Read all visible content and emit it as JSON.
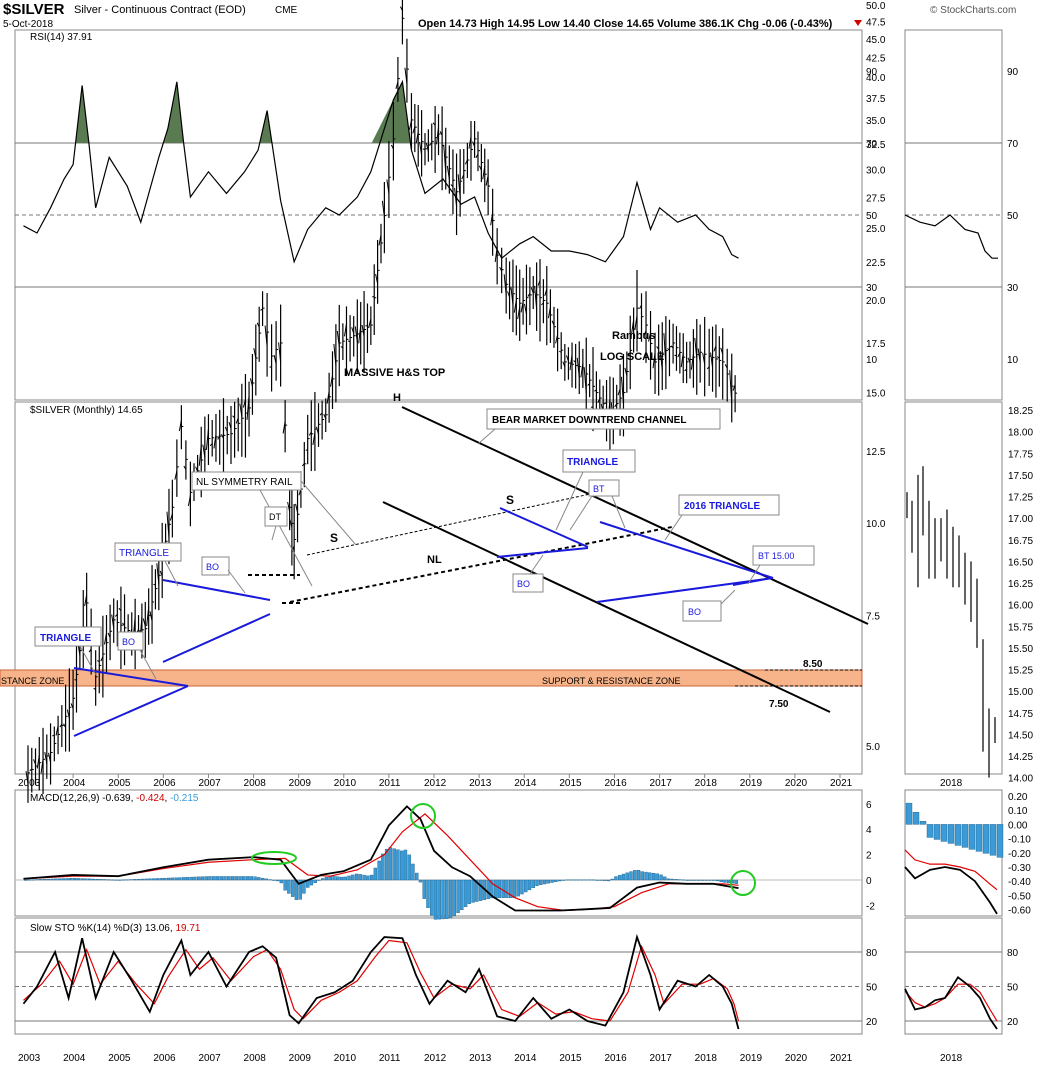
{
  "header": {
    "symbol": "$SILVER",
    "description": "Silver - Continuous Contract (EOD)",
    "exchange": "CME",
    "date": "5-Oct-2018",
    "quote": "Open 14.73   High 14.95   Low 14.40   Close 14.65   Volume 386.1K   Chg -0.06 (-0.43%)",
    "logo": "© StockCharts.com"
  },
  "colors": {
    "price_bar": "#000000",
    "trendline_blue": "#1a1adb",
    "macd_histogram": "#3b9bd6",
    "signal_line": "#e00000",
    "rsi_overbought_fill": "#5a7a52",
    "support_zone": "#f7b48a",
    "highlight_circle": "#22cc22",
    "grid": "#999999"
  },
  "rsi_panel": {
    "title": "RSI(14) 37.91",
    "y_ticks": [
      "90",
      "70",
      "50",
      "30",
      "10"
    ],
    "right_y_ticks": [
      "90",
      "70",
      "50",
      "30",
      "10"
    ]
  },
  "price_panel": {
    "title": "$SILVER (Monthly) 14.65",
    "y_ticks": [
      "50.0",
      "47.5",
      "45.0",
      "42.5",
      "40.0",
      "37.5",
      "35.0",
      "32.5",
      "30.0",
      "27.5",
      "25.0",
      "22.5",
      "20.0",
      "17.5",
      "15.0",
      "12.5",
      "10.0",
      "7.5",
      "5.0"
    ],
    "right_y_ticks": [
      "18.25",
      "18.00",
      "17.75",
      "17.50",
      "17.25",
      "17.00",
      "16.75",
      "16.50",
      "16.25",
      "16.00",
      "15.75",
      "15.50",
      "15.25",
      "15.00",
      "14.75",
      "14.50",
      "14.25",
      "14.00"
    ],
    "annotations": {
      "rambus": "Rambus",
      "log_scale": "LOG SCALE",
      "massive_hs": "MASSIVE H&S TOP",
      "head": "H",
      "left_shoulder": "S",
      "right_shoulder": "S",
      "neckline": "NL",
      "bear_channel": "BEAR MARKET DOWNTREND CHANNEL",
      "triangle_2013": "TRIANGLE",
      "bt_2015": "BT",
      "triangle_2016": "2016 TRIANGLE",
      "bt_1500": "BT 15.00",
      "nl_symmetry": "NL SYMMETRY RAIL",
      "dt": "DT",
      "triangle_2006": "TRIANGLE",
      "bo_2006": "BO",
      "triangle_2004": "TRIANGLE",
      "bo_2005": "BO",
      "bo_2014": "BO",
      "bo_2018": "BO",
      "support_zone": "SUPPORT & RESISTANCE ZONE",
      "resistance_zone_left": "STANCE ZONE",
      "level_850": "8.50",
      "level_750": "7.50"
    }
  },
  "macd_panel": {
    "title": "MACD(12,26,9) -0.639, -0.424, -0.215",
    "y_ticks": [
      "6",
      "4",
      "2",
      "0",
      "-2"
    ],
    "right_y_ticks": [
      "0.20",
      "0.10",
      "0.00",
      "-0.10",
      "-0.20",
      "-0.30",
      "-0.40",
      "-0.50",
      "-0.60"
    ]
  },
  "sto_panel": {
    "title": "Slow STO %K(14) %D(3) 13.06, 19.71",
    "y_ticks": [
      "80",
      "50",
      "20"
    ],
    "right_y_ticks": [
      "80",
      "50",
      "20"
    ]
  },
  "x_axis": {
    "years": [
      "2003",
      "2004",
      "2005",
      "2006",
      "2007",
      "2008",
      "2009",
      "2010",
      "2011",
      "2012",
      "2013",
      "2014",
      "2015",
      "2016",
      "2017",
      "2018",
      "2019",
      "2020",
      "2021"
    ],
    "right_year": "2018"
  },
  "chart_data": {
    "type": "line",
    "title": "$SILVER (Monthly) 14.65",
    "y_scale": "log",
    "ylim": [
      4.5,
      50.0
    ],
    "series": [
      {
        "name": "$SILVER (Monthly)",
        "points": [
          [
            2003.0,
            4.6
          ],
          [
            2003.5,
            4.9
          ],
          [
            2004.0,
            5.8
          ],
          [
            2004.3,
            7.8
          ],
          [
            2004.5,
            6.2
          ],
          [
            2004.9,
            7.4
          ],
          [
            2005.3,
            7.1
          ],
          [
            2005.6,
            7.2
          ],
          [
            2005.9,
            8.5
          ],
          [
            2006.2,
            10.5
          ],
          [
            2006.4,
            13.5
          ],
          [
            2006.6,
            11.0
          ],
          [
            2007.0,
            13.0
          ],
          [
            2007.5,
            13.2
          ],
          [
            2007.9,
            14.3
          ],
          [
            2008.2,
            19.5
          ],
          [
            2008.4,
            16.8
          ],
          [
            2008.6,
            17.5
          ],
          [
            2008.8,
            10.5
          ],
          [
            2008.9,
            9.5
          ],
          [
            2009.2,
            13.0
          ],
          [
            2009.6,
            14.0
          ],
          [
            2009.9,
            17.5
          ],
          [
            2010.3,
            18.0
          ],
          [
            2010.6,
            18.5
          ],
          [
            2010.9,
            26.0
          ],
          [
            2011.1,
            33.0
          ],
          [
            2011.3,
            48.0
          ],
          [
            2011.5,
            35.0
          ],
          [
            2011.8,
            32.0
          ],
          [
            2012.1,
            33.5
          ],
          [
            2012.5,
            28.0
          ],
          [
            2012.9,
            33.0
          ],
          [
            2013.2,
            28.5
          ],
          [
            2013.4,
            23.0
          ],
          [
            2013.6,
            21.0
          ],
          [
            2013.9,
            19.8
          ],
          [
            2014.2,
            20.5
          ],
          [
            2014.5,
            19.8
          ],
          [
            2014.9,
            16.5
          ],
          [
            2015.3,
            16.2
          ],
          [
            2015.6,
            15.0
          ],
          [
            2015.9,
            14.0
          ],
          [
            2016.2,
            15.0
          ],
          [
            2016.5,
            19.5
          ],
          [
            2016.7,
            18.5
          ],
          [
            2016.9,
            16.5
          ],
          [
            2017.3,
            17.5
          ],
          [
            2017.6,
            16.5
          ],
          [
            2017.9,
            17.0
          ],
          [
            2018.1,
            16.8
          ],
          [
            2018.4,
            16.5
          ],
          [
            2018.6,
            15.3
          ],
          [
            2018.75,
            14.65
          ]
        ]
      }
    ],
    "x": {
      "type": "year",
      "range": [
        2002.9,
        2021.2
      ]
    },
    "levels": {
      "resistance_top": 8.5,
      "resistance_bottom": 7.5
    },
    "rsi": {
      "name": "RSI(14)",
      "points": [
        [
          2002.9,
          47
        ],
        [
          2003.2,
          45
        ],
        [
          2003.5,
          52
        ],
        [
          2003.8,
          60
        ],
        [
          2004.0,
          64
        ],
        [
          2004.2,
          86
        ],
        [
          2004.35,
          70
        ],
        [
          2004.5,
          52
        ],
        [
          2004.8,
          66
        ],
        [
          2005.2,
          58
        ],
        [
          2005.5,
          48
        ],
        [
          2005.9,
          66
        ],
        [
          2006.1,
          74
        ],
        [
          2006.3,
          87
        ],
        [
          2006.45,
          70
        ],
        [
          2006.6,
          55
        ],
        [
          2007.0,
          62
        ],
        [
          2007.4,
          56
        ],
        [
          2007.8,
          62
        ],
        [
          2008.1,
          68
        ],
        [
          2008.3,
          79
        ],
        [
          2008.6,
          54
        ],
        [
          2008.9,
          37
        ],
        [
          2009.2,
          46
        ],
        [
          2009.6,
          52
        ],
        [
          2009.9,
          50
        ],
        [
          2010.3,
          55
        ],
        [
          2010.6,
          62
        ],
        [
          2010.9,
          74
        ],
        [
          2011.1,
          82
        ],
        [
          2011.3,
          87
        ],
        [
          2011.5,
          68
        ],
        [
          2011.8,
          56
        ],
        [
          2012.2,
          60
        ],
        [
          2012.6,
          53
        ],
        [
          2012.9,
          55
        ],
        [
          2013.2,
          45
        ],
        [
          2013.5,
          38
        ],
        [
          2013.9,
          42
        ],
        [
          2014.2,
          44
        ],
        [
          2014.6,
          40
        ],
        [
          2015.0,
          40
        ],
        [
          2015.4,
          39
        ],
        [
          2015.8,
          37
        ],
        [
          2016.2,
          44
        ],
        [
          2016.5,
          59
        ],
        [
          2016.8,
          46
        ],
        [
          2017.0,
          52
        ],
        [
          2017.4,
          48
        ],
        [
          2017.8,
          50
        ],
        [
          2018.1,
          46
        ],
        [
          2018.4,
          44
        ],
        [
          2018.6,
          39
        ],
        [
          2018.75,
          38
        ]
      ]
    },
    "macd": {
      "name": "MACD(12,26,9)",
      "macd": [
        [
          2002.9,
          0.1
        ],
        [
          2004.0,
          0.4
        ],
        [
          2005.0,
          0.3
        ],
        [
          2006.0,
          1.0
        ],
        [
          2007.0,
          1.6
        ],
        [
          2008.0,
          1.8
        ],
        [
          2008.6,
          1.6
        ],
        [
          2009.0,
          -0.3
        ],
        [
          2009.5,
          0.4
        ],
        [
          2010.0,
          0.7
        ],
        [
          2010.6,
          1.6
        ],
        [
          2011.0,
          4.3
        ],
        [
          2011.4,
          5.8
        ],
        [
          2011.7,
          4.8
        ],
        [
          2012.0,
          2.3
        ],
        [
          2012.4,
          1.0
        ],
        [
          2012.8,
          0.3
        ],
        [
          2013.3,
          -1.3
        ],
        [
          2013.8,
          -2.4
        ],
        [
          2014.3,
          -2.4
        ],
        [
          2014.8,
          -2.4
        ],
        [
          2015.4,
          -2.3
        ],
        [
          2015.9,
          -2.2
        ],
        [
          2016.5,
          -0.6
        ],
        [
          2017.0,
          -0.2
        ],
        [
          2017.6,
          -0.3
        ],
        [
          2018.2,
          -0.3
        ],
        [
          2018.75,
          -0.64
        ]
      ],
      "signal": [
        [
          2002.9,
          0.1
        ],
        [
          2004.0,
          0.3
        ],
        [
          2005.0,
          0.3
        ],
        [
          2006.0,
          0.9
        ],
        [
          2007.0,
          1.4
        ],
        [
          2008.0,
          1.6
        ],
        [
          2008.7,
          1.7
        ],
        [
          2009.2,
          0.4
        ],
        [
          2009.7,
          0.3
        ],
        [
          2010.3,
          0.8
        ],
        [
          2010.9,
          2.0
        ],
        [
          2011.3,
          3.8
        ],
        [
          2011.8,
          5.2
        ],
        [
          2012.3,
          3.5
        ],
        [
          2012.8,
          1.6
        ],
        [
          2013.3,
          -0.3
        ],
        [
          2013.8,
          -1.4
        ],
        [
          2014.3,
          -2.1
        ],
        [
          2014.9,
          -2.4
        ],
        [
          2015.5,
          -2.3
        ],
        [
          2016.0,
          -2.1
        ],
        [
          2016.6,
          -1.0
        ],
        [
          2017.2,
          -0.3
        ],
        [
          2017.8,
          -0.3
        ],
        [
          2018.4,
          -0.3
        ],
        [
          2018.75,
          -0.42
        ]
      ]
    },
    "slow_sto": {
      "name": "Slow STO %K(14) %D(3)",
      "k": [
        [
          2002.9,
          35
        ],
        [
          2003.2,
          50
        ],
        [
          2003.6,
          80
        ],
        [
          2003.9,
          40
        ],
        [
          2004.2,
          92
        ],
        [
          2004.5,
          40
        ],
        [
          2004.9,
          80
        ],
        [
          2005.3,
          55
        ],
        [
          2005.7,
          28
        ],
        [
          2006.0,
          60
        ],
        [
          2006.4,
          90
        ],
        [
          2006.6,
          60
        ],
        [
          2007.0,
          80
        ],
        [
          2007.4,
          50
        ],
        [
          2007.9,
          80
        ],
        [
          2008.2,
          85
        ],
        [
          2008.5,
          75
        ],
        [
          2008.8,
          25
        ],
        [
          2009.0,
          18
        ],
        [
          2009.4,
          40
        ],
        [
          2009.8,
          45
        ],
        [
          2010.2,
          55
        ],
        [
          2010.6,
          80
        ],
        [
          2010.9,
          93
        ],
        [
          2011.3,
          92
        ],
        [
          2011.6,
          60
        ],
        [
          2011.9,
          35
        ],
        [
          2012.3,
          55
        ],
        [
          2012.7,
          45
        ],
        [
          2013.0,
          65
        ],
        [
          2013.4,
          24
        ],
        [
          2013.8,
          20
        ],
        [
          2014.2,
          40
        ],
        [
          2014.6,
          22
        ],
        [
          2015.0,
          30
        ],
        [
          2015.4,
          20
        ],
        [
          2015.8,
          16
        ],
        [
          2016.2,
          45
        ],
        [
          2016.5,
          93
        ],
        [
          2016.8,
          60
        ],
        [
          2017.0,
          30
        ],
        [
          2017.4,
          55
        ],
        [
          2017.8,
          50
        ],
        [
          2018.1,
          60
        ],
        [
          2018.4,
          50
        ],
        [
          2018.6,
          35
        ],
        [
          2018.75,
          13
        ]
      ],
      "d": [
        [
          2002.9,
          38
        ],
        [
          2003.3,
          52
        ],
        [
          2003.7,
          72
        ],
        [
          2004.0,
          52
        ],
        [
          2004.3,
          82
        ],
        [
          2004.6,
          52
        ],
        [
          2005.0,
          72
        ],
        [
          2005.4,
          52
        ],
        [
          2005.8,
          35
        ],
        [
          2006.1,
          58
        ],
        [
          2006.5,
          82
        ],
        [
          2006.8,
          65
        ],
        [
          2007.1,
          75
        ],
        [
          2007.5,
          55
        ],
        [
          2008.0,
          76
        ],
        [
          2008.3,
          82
        ],
        [
          2008.6,
          65
        ],
        [
          2008.9,
          30
        ],
        [
          2009.1,
          22
        ],
        [
          2009.5,
          38
        ],
        [
          2009.9,
          45
        ],
        [
          2010.3,
          55
        ],
        [
          2010.7,
          76
        ],
        [
          2011.0,
          90
        ],
        [
          2011.4,
          88
        ],
        [
          2011.7,
          62
        ],
        [
          2012.0,
          40
        ],
        [
          2012.4,
          52
        ],
        [
          2012.8,
          48
        ],
        [
          2013.1,
          60
        ],
        [
          2013.5,
          30
        ],
        [
          2013.9,
          24
        ],
        [
          2014.3,
          36
        ],
        [
          2014.7,
          26
        ],
        [
          2015.1,
          28
        ],
        [
          2015.5,
          22
        ],
        [
          2015.9,
          20
        ],
        [
          2016.3,
          45
        ],
        [
          2016.6,
          85
        ],
        [
          2016.9,
          60
        ],
        [
          2017.1,
          35
        ],
        [
          2017.5,
          52
        ],
        [
          2017.9,
          52
        ],
        [
          2018.2,
          57
        ],
        [
          2018.5,
          48
        ],
        [
          2018.65,
          35
        ],
        [
          2018.75,
          20
        ]
      ]
    }
  }
}
